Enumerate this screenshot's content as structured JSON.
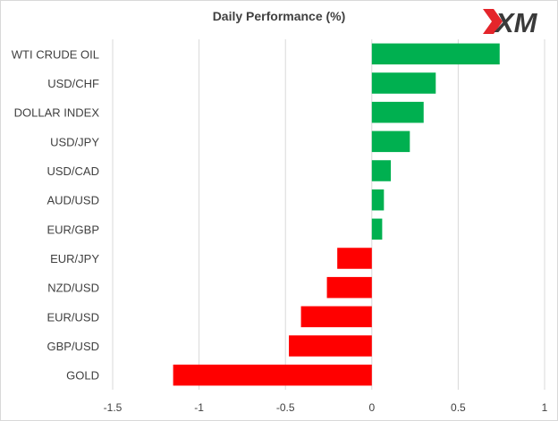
{
  "chart_data": {
    "type": "bar",
    "orientation": "horizontal",
    "title": "Daily Performance (%)",
    "xlabel": "",
    "ylabel": "",
    "categories": [
      "WTI CRUDE OIL",
      "USD/CHF",
      "DOLLAR INDEX",
      "USD/JPY",
      "USD/CAD",
      "AUD/USD",
      "EUR/GBP",
      "EUR/JPY",
      "NZD/USD",
      "EUR/USD",
      "GBP/USD",
      "GOLD"
    ],
    "values": [
      0.74,
      0.37,
      0.3,
      0.22,
      0.11,
      0.07,
      0.06,
      -0.2,
      -0.26,
      -0.41,
      -0.48,
      -1.15
    ],
    "xlim": [
      -1.5,
      1
    ],
    "x_ticks": [
      "-1.5",
      "-1",
      "-0.5",
      "0",
      "0.5",
      "1"
    ],
    "grid": "vertical",
    "legend": "none",
    "colors": {
      "positive": "#00b050",
      "negative": "#ff0000",
      "grid": "#d9d9d9",
      "text": "#404040"
    }
  },
  "logo": {
    "text": "XM",
    "colors": {
      "red": "#e4252b",
      "dark": "#3a3a3a"
    }
  }
}
